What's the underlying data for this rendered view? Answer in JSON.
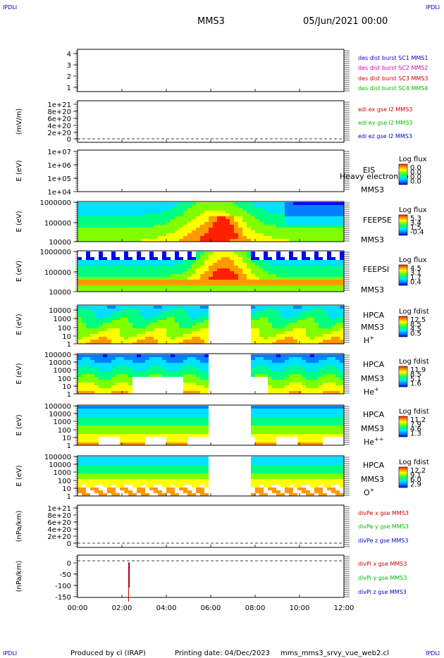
{
  "header": {
    "corner_tl": "IPDLI",
    "corner_tr": "IPDLI",
    "corner_bl": "IPDLI",
    "corner_br": "IPDLI",
    "mission": "MMS3",
    "datetime": "05/Jun/2021 00:00"
  },
  "footer": {
    "produced_by": "Produced by cl (IRAP)",
    "printing_date": "Printing date: 04/Dec/2023",
    "script_name": "mms_mms3_srvy_vue_web2.cl"
  },
  "colors": {
    "blue": "#0000cc",
    "magenta": "#cc00cc",
    "red": "#cc0000",
    "green": "#00bb00",
    "rainbow": [
      "#0000ff",
      "#0080ff",
      "#00e0ff",
      "#00ff80",
      "#80ff00",
      "#ffff00",
      "#ff9900",
      "#ff2000"
    ]
  },
  "chart_data": {
    "type": "heatmap",
    "x_ticks": [
      "00:00",
      "02:00",
      "04:00",
      "06:00",
      "08:00",
      "10:00",
      "12:00"
    ],
    "xlim_hours": [
      0,
      12
    ],
    "panels": [
      {
        "id": "dist",
        "ylabel": "",
        "yticks": [
          "4",
          "3",
          "2",
          "1"
        ],
        "legend": [
          {
            "text": "des dist burst SC1 MMS1",
            "color": "#0000cc"
          },
          {
            "text": "des dist burst SC2 MMS2",
            "color": "#cc00cc"
          },
          {
            "text": "des dist burst SC3 MMS3",
            "color": "#cc0000"
          },
          {
            "text": "des dist burst SC4 MMS4",
            "color": "#00bb00"
          }
        ]
      },
      {
        "id": "edi",
        "ylabel": "(mV/m)",
        "yticks": [
          "1e+21",
          "8e+20",
          "6e+20",
          "4e+20",
          "2e+20",
          "0"
        ],
        "legend": [
          {
            "text": "edi ex gse l2 MMS3",
            "color": "#cc0000"
          },
          {
            "text": "edi ey gse l2 MMS3",
            "color": "#00bb00"
          },
          {
            "text": "edi ez gse l2 MMS3",
            "color": "#0000cc"
          }
        ]
      },
      {
        "id": "eis",
        "ylabel": "E (eV)",
        "yticks": [
          "1e+07",
          "1e+06",
          "1e+05",
          "1e+04"
        ],
        "instrument": [
          "EIS",
          "MMS3"
        ],
        "note": "Heavy electron to",
        "colorbar": {
          "title": "Log flux",
          "labels": [
            "0.0",
            "0.0",
            "0.0",
            "0.0"
          ]
        }
      },
      {
        "id": "feepse",
        "ylabel": "E (eV)",
        "yticks": [
          "1000000",
          "100000",
          "10000"
        ],
        "instrument": [
          "FEEPSE",
          "MMS3"
        ],
        "colorbar": {
          "title": "Log flux",
          "labels": [
            "5.3",
            "3.4",
            "1.5",
            "-0.4"
          ]
        }
      },
      {
        "id": "feepsi",
        "ylabel": "E (eV)",
        "yticks": [
          "1000000",
          "100000",
          "10000"
        ],
        "instrument": [
          "FEEPSI",
          "MMS3"
        ],
        "colorbar": {
          "title": "Log flux",
          "labels": [
            "4.5",
            "3.1",
            "1.7",
            "0.4"
          ]
        }
      },
      {
        "id": "hpca_h",
        "ylabel": "E (eV)",
        "yticks": [
          "10000",
          "1000",
          "100",
          "10",
          "1"
        ],
        "instrument": [
          "HPCA",
          "MMS3"
        ],
        "species": "H",
        "species_sup": "+",
        "colorbar": {
          "title": "Log fdist",
          "labels": [
            "12.5",
            "8.5",
            "4.5",
            "0.5"
          ]
        }
      },
      {
        "id": "hpca_he",
        "ylabel": "E (eV)",
        "yticks": [
          "100000",
          "10000",
          "1000",
          "100",
          "10",
          "1"
        ],
        "instrument": [
          "HPCA",
          "MMS3"
        ],
        "species": "He",
        "species_sup": "+",
        "colorbar": {
          "title": "Log fdist",
          "labels": [
            "11.9",
            "8.5",
            "5.1",
            "1.6"
          ]
        }
      },
      {
        "id": "hpca_hepp",
        "ylabel": "E (eV)",
        "yticks": [
          "100000",
          "10000",
          "1000",
          "100",
          "10",
          "1"
        ],
        "instrument": [
          "HPCA",
          "MMS3"
        ],
        "species": "He",
        "species_sup": "++",
        "colorbar": {
          "title": "Log fdist",
          "labels": [
            "11.2",
            "7.9",
            "4.6",
            "1.3"
          ]
        }
      },
      {
        "id": "hpca_o",
        "ylabel": "E (eV)",
        "yticks": [
          "100000",
          "10000",
          "1000",
          "100",
          "10",
          "1"
        ],
        "instrument": [
          "HPCA",
          "MMS3"
        ],
        "species": "O",
        "species_sup": "+",
        "colorbar": {
          "title": "Log fdist",
          "labels": [
            "12.2",
            "9.1",
            "6.0",
            "2.9"
          ]
        }
      },
      {
        "id": "divpe",
        "ylabel": "(nPa/km)",
        "yticks": [
          "1e+21",
          "8e+20",
          "6e+20",
          "4e+20",
          "2e+20",
          "0"
        ],
        "legend": [
          {
            "text": "divPe x gse MMS3",
            "color": "#cc0000"
          },
          {
            "text": "divPe y gse MMS3",
            "color": "#00bb00"
          },
          {
            "text": "divPe z gse MMS3",
            "color": "#0000cc"
          }
        ]
      },
      {
        "id": "divpi",
        "ylabel": "(nPa/km)",
        "yticks": [
          "0",
          "-50",
          "-100",
          "-150"
        ],
        "spike": {
          "t_hours": 2.3,
          "y_top": 2,
          "y_bottom": -172
        },
        "legend": [
          {
            "text": "divPi x gse MMS3",
            "color": "#cc0000"
          },
          {
            "text": "divPi y gse MMS3",
            "color": "#00bb00"
          },
          {
            "text": "divPi z gse MMS3",
            "color": "#0000cc"
          }
        ]
      }
    ]
  }
}
